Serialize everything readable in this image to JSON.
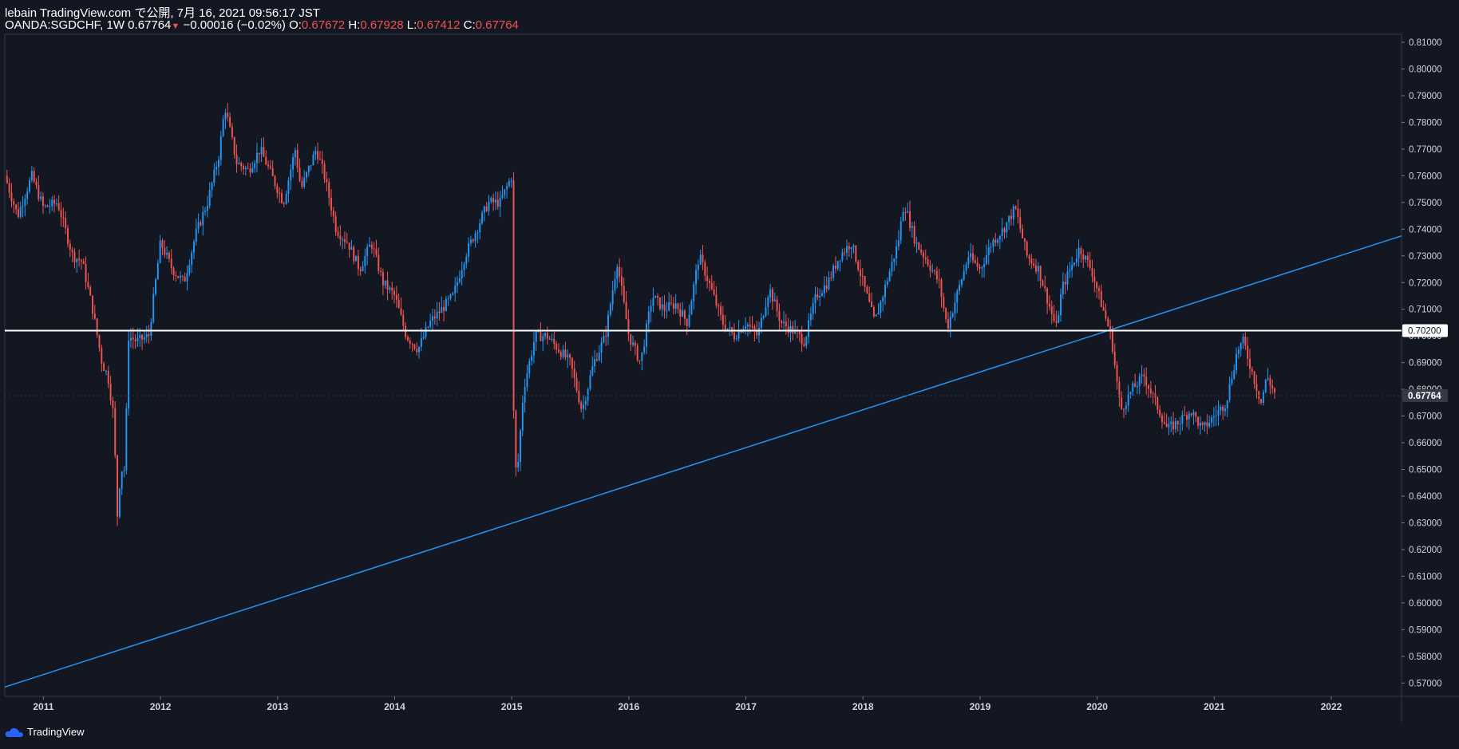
{
  "header": {
    "publish_line": "lebain TradingView.com で公開, 7月 16, 2021 09:56:17 JST",
    "symbol_line": "OANDA:SGDCHF, 1W 0.67764",
    "change": "−0.00016 (−0.02%)",
    "o_label": "O:",
    "o_value": "0.67672",
    "h_label": "H:",
    "h_value": "0.67928",
    "l_label": "L:",
    "l_value": "0.67412",
    "c_label": "C:",
    "c_value": "0.67764"
  },
  "footer": {
    "brand": "TradingView"
  },
  "colors": {
    "background": "#131722",
    "up": "#2196f3",
    "down": "#ef5350",
    "trendline": "#2196f3",
    "hline": "#ffffff"
  },
  "chart_data": {
    "type": "candlestick",
    "symbol": "OANDA:SGDCHF",
    "interval": "1W",
    "ylim": [
      0.565,
      0.813
    ],
    "xlim": [
      2010.67,
      2022.6
    ],
    "y_ticks": [
      "0.57000",
      "0.58000",
      "0.59000",
      "0.60000",
      "0.61000",
      "0.62000",
      "0.63000",
      "0.64000",
      "0.65000",
      "0.66000",
      "0.67000",
      "0.68000",
      "0.69000",
      "0.70000",
      "0.71000",
      "0.72000",
      "0.73000",
      "0.74000",
      "0.75000",
      "0.76000",
      "0.77000",
      "0.78000",
      "0.79000",
      "0.80000",
      "0.81000"
    ],
    "x_ticks": [
      "2011",
      "2012",
      "2013",
      "2014",
      "2015",
      "2016",
      "2017",
      "2018",
      "2019",
      "2020",
      "2021",
      "2022"
    ],
    "horizontal_line": {
      "price": 0.702,
      "label": "0.70200"
    },
    "last_price": {
      "price": 0.67764,
      "label": "0.67764"
    },
    "trendline": {
      "x": [
        2010.67,
        2022.6
      ],
      "y": [
        0.5685,
        0.7375
      ]
    },
    "close_path": [
      [
        2010.67,
        0.76
      ],
      [
        2010.78,
        0.745
      ],
      [
        2010.9,
        0.76
      ],
      [
        2011.0,
        0.748
      ],
      [
        2011.12,
        0.75
      ],
      [
        2011.25,
        0.73
      ],
      [
        2011.33,
        0.728
      ],
      [
        2011.42,
        0.71
      ],
      [
        2011.5,
        0.69
      ],
      [
        2011.55,
        0.685
      ],
      [
        2011.6,
        0.67
      ],
      [
        2011.63,
        0.632
      ],
      [
        2011.66,
        0.65
      ],
      [
        2011.7,
        0.65
      ],
      [
        2011.72,
        0.7
      ],
      [
        2011.8,
        0.698
      ],
      [
        2011.9,
        0.7
      ],
      [
        2012.0,
        0.735
      ],
      [
        2012.1,
        0.725
      ],
      [
        2012.2,
        0.72
      ],
      [
        2012.3,
        0.738
      ],
      [
        2012.4,
        0.75
      ],
      [
        2012.5,
        0.768
      ],
      [
        2012.55,
        0.786
      ],
      [
        2012.65,
        0.765
      ],
      [
        2012.75,
        0.762
      ],
      [
        2012.85,
        0.77
      ],
      [
        2012.95,
        0.76
      ],
      [
        2013.05,
        0.75
      ],
      [
        2013.15,
        0.77
      ],
      [
        2013.2,
        0.755
      ],
      [
        2013.33,
        0.77
      ],
      [
        2013.4,
        0.76
      ],
      [
        2013.5,
        0.74
      ],
      [
        2013.6,
        0.735
      ],
      [
        2013.7,
        0.725
      ],
      [
        2013.8,
        0.735
      ],
      [
        2013.9,
        0.72
      ],
      [
        2014.0,
        0.715
      ],
      [
        2014.1,
        0.7
      ],
      [
        2014.2,
        0.695
      ],
      [
        2014.3,
        0.705
      ],
      [
        2014.4,
        0.71
      ],
      [
        2014.5,
        0.715
      ],
      [
        2014.6,
        0.73
      ],
      [
        2014.7,
        0.74
      ],
      [
        2014.8,
        0.75
      ],
      [
        2014.9,
        0.75
      ],
      [
        2015.0,
        0.76
      ],
      [
        2015.02,
        0.65
      ],
      [
        2015.05,
        0.65
      ],
      [
        2015.1,
        0.68
      ],
      [
        2015.2,
        0.7
      ],
      [
        2015.3,
        0.7
      ],
      [
        2015.4,
        0.695
      ],
      [
        2015.5,
        0.69
      ],
      [
        2015.6,
        0.672
      ],
      [
        2015.7,
        0.69
      ],
      [
        2015.8,
        0.7
      ],
      [
        2015.9,
        0.728
      ],
      [
        2016.0,
        0.7
      ],
      [
        2016.1,
        0.69
      ],
      [
        2016.2,
        0.715
      ],
      [
        2016.3,
        0.71
      ],
      [
        2016.4,
        0.712
      ],
      [
        2016.5,
        0.705
      ],
      [
        2016.6,
        0.73
      ],
      [
        2016.7,
        0.718
      ],
      [
        2016.8,
        0.705
      ],
      [
        2016.9,
        0.7
      ],
      [
        2017.0,
        0.705
      ],
      [
        2017.1,
        0.7
      ],
      [
        2017.2,
        0.718
      ],
      [
        2017.3,
        0.705
      ],
      [
        2017.4,
        0.702
      ],
      [
        2017.5,
        0.698
      ],
      [
        2017.6,
        0.715
      ],
      [
        2017.7,
        0.72
      ],
      [
        2017.8,
        0.73
      ],
      [
        2017.9,
        0.735
      ],
      [
        2018.0,
        0.72
      ],
      [
        2018.1,
        0.705
      ],
      [
        2018.2,
        0.72
      ],
      [
        2018.3,
        0.735
      ],
      [
        2018.35,
        0.75
      ],
      [
        2018.45,
        0.735
      ],
      [
        2018.55,
        0.728
      ],
      [
        2018.65,
        0.72
      ],
      [
        2018.72,
        0.703
      ],
      [
        2018.8,
        0.715
      ],
      [
        2018.9,
        0.73
      ],
      [
        2019.0,
        0.725
      ],
      [
        2019.1,
        0.735
      ],
      [
        2019.2,
        0.74
      ],
      [
        2019.3,
        0.748
      ],
      [
        2019.4,
        0.73
      ],
      [
        2019.5,
        0.725
      ],
      [
        2019.6,
        0.71
      ],
      [
        2019.65,
        0.703
      ],
      [
        2019.7,
        0.718
      ],
      [
        2019.8,
        0.728
      ],
      [
        2019.85,
        0.733
      ],
      [
        2019.95,
        0.725
      ],
      [
        2020.05,
        0.71
      ],
      [
        2020.12,
        0.7
      ],
      [
        2020.2,
        0.672
      ],
      [
        2020.3,
        0.68
      ],
      [
        2020.4,
        0.685
      ],
      [
        2020.5,
        0.675
      ],
      [
        2020.6,
        0.665
      ],
      [
        2020.7,
        0.668
      ],
      [
        2020.8,
        0.672
      ],
      [
        2020.9,
        0.665
      ],
      [
        2021.0,
        0.67
      ],
      [
        2021.1,
        0.675
      ],
      [
        2021.2,
        0.695
      ],
      [
        2021.25,
        0.698
      ],
      [
        2021.3,
        0.69
      ],
      [
        2021.4,
        0.675
      ],
      [
        2021.45,
        0.685
      ],
      [
        2021.5,
        0.68
      ],
      [
        2021.53,
        0.6776
      ]
    ]
  }
}
